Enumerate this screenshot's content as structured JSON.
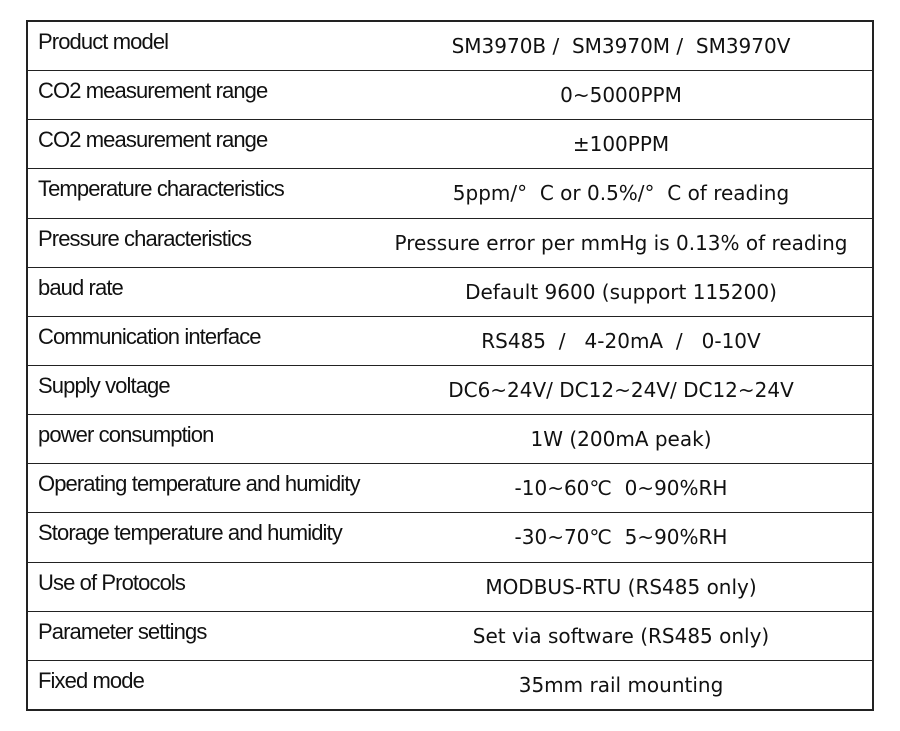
{
  "table": {
    "rows": [
      [
        "Product model",
        "SM3970B /  SM3970M /  SM3970V"
      ],
      [
        "CO2 measurement range",
        "0~5000PPM"
      ],
      [
        "CO2 measurement range",
        "±100PPM"
      ],
      [
        "Temperature characteristics",
        "5ppm/°  C or 0.5%/°  C of reading"
      ],
      [
        "Pressure characteristics",
        "Pressure error per mmHg is 0.13% of reading"
      ],
      [
        "baud rate",
        "Default 9600 (support 115200)"
      ],
      [
        "Communication interface",
        "RS485  /   4-20mA  /   0-10V"
      ],
      [
        "Supply voltage",
        "DC6~24V/ DC12~24V/ DC12~24V"
      ],
      [
        "power consumption",
        "1W (200mA peak)"
      ],
      [
        "Operating temperature and humidity",
        "-10~60℃  0~90%RH"
      ],
      [
        "Storage temperature and humidity",
        "-30~70℃  5~90%RH"
      ],
      [
        "Use of Protocols",
        "MODBUS-RTU (RS485 only)"
      ],
      [
        "Parameter settings",
        "Set via software (RS485 only)"
      ],
      [
        "Fixed mode",
        "35mm rail mounting"
      ]
    ]
  }
}
